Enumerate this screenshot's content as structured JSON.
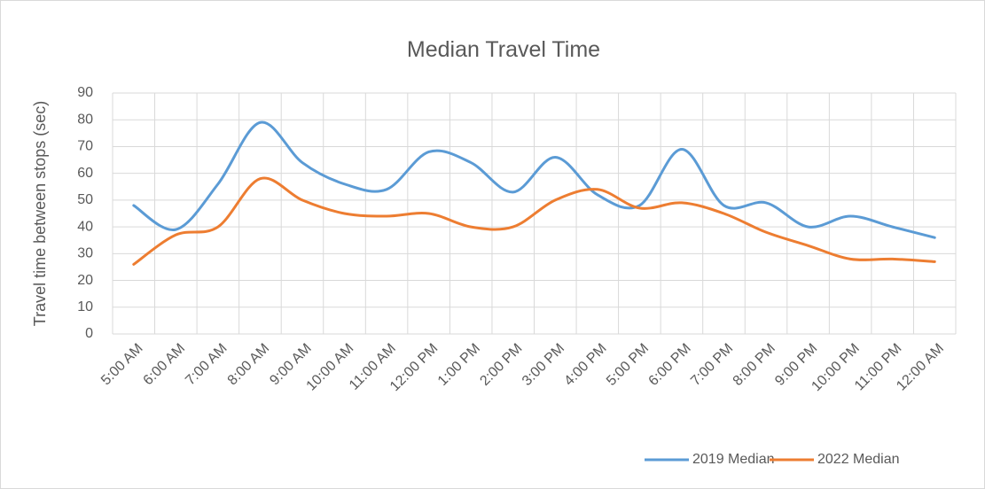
{
  "chart_data": {
    "type": "line",
    "title": "Median Travel Time",
    "y_label": "Travel time between stops (sec)",
    "categories": [
      "5:00 AM",
      "6:00 AM",
      "7:00 AM",
      "8:00 AM",
      "9:00 AM",
      "10:00 AM",
      "11:00 AM",
      "12:00 PM",
      "1:00 PM",
      "2:00 PM",
      "3:00 PM",
      "4:00 PM",
      "5:00 PM",
      "6:00 PM",
      "7:00 PM",
      "8:00 PM",
      "9:00 PM",
      "10:00 PM",
      "11:00 PM",
      "12:00 AM"
    ],
    "series": [
      {
        "name": "2019 Median",
        "color": "#5b9bd5",
        "values": [
          48,
          39,
          56,
          79,
          64,
          56,
          54,
          68,
          64,
          53,
          66,
          52,
          48,
          69,
          48,
          49,
          40,
          44,
          40,
          36
        ]
      },
      {
        "name": "2022 Median",
        "color": "#ed7d31",
        "values": [
          26,
          37,
          40,
          58,
          50,
          45,
          44,
          45,
          40,
          40,
          50,
          54,
          47,
          49,
          45,
          38,
          33,
          28,
          28,
          27
        ]
      }
    ],
    "ylim": [
      0,
      90
    ],
    "yticks": [
      0,
      10,
      20,
      30,
      40,
      50,
      60,
      70,
      80,
      90
    ],
    "grid": true,
    "smooth": true,
    "legend": "bottom"
  }
}
